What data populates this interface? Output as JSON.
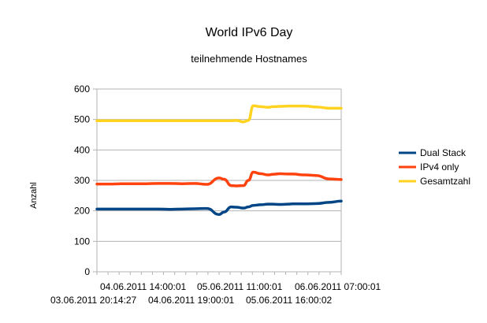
{
  "chart_data": {
    "type": "line",
    "title": "World IPv6 Day",
    "subtitle": "teilnehmende Hostnames",
    "xlabel": "",
    "ylabel": "Anzahl",
    "ylim": [
      0,
      600
    ],
    "yticks": [
      0,
      100,
      200,
      300,
      400,
      500,
      600
    ],
    "grid": true,
    "legend_position": "right",
    "x_tick_labels": [
      "03.06.2011 20:14:27",
      "04.06.2011 14:00:01",
      "04.06.2011 19:00:01",
      "05.06.2011 11:00:01",
      "05.06.2011 16:00:02",
      "06.06.2011 07:00:01"
    ],
    "x": [
      0,
      0.05,
      0.1,
      0.15,
      0.2,
      0.25,
      0.3,
      0.35,
      0.4,
      0.45,
      0.5,
      0.52,
      0.55,
      0.57,
      0.6,
      0.62,
      0.64,
      0.67,
      0.7,
      0.72,
      0.75,
      0.78,
      0.8,
      0.85,
      0.9,
      0.95,
      1
    ],
    "series": [
      {
        "name": "Dual Stack",
        "color": "#004586",
        "values": [
          206,
          206,
          206,
          206,
          206,
          206,
          205,
          206,
          207,
          208,
          188,
          196,
          213,
          212,
          209,
          213,
          218,
          220,
          222,
          222,
          221,
          222,
          223,
          223,
          224,
          228,
          232
        ]
      },
      {
        "name": "IPv4 only",
        "color": "#ff420e",
        "values": [
          288,
          288,
          289,
          289,
          289,
          290,
          290,
          289,
          290,
          287,
          308,
          304,
          283,
          282,
          283,
          300,
          327,
          322,
          318,
          320,
          322,
          321,
          321,
          318,
          316,
          305,
          303
        ]
      },
      {
        "name": "Gesamtzahl",
        "color": "#ffd320",
        "values": [
          496,
          496,
          496,
          496,
          496,
          496,
          496,
          496,
          496,
          496,
          496,
          496,
          496,
          497,
          492,
          497,
          545,
          542,
          540,
          542,
          543,
          544,
          544,
          544,
          541,
          537,
          537
        ]
      }
    ]
  },
  "colors": {
    "grid": "#b3b3b3",
    "axis": "#b3b3b3",
    "background": "#ffffff"
  }
}
